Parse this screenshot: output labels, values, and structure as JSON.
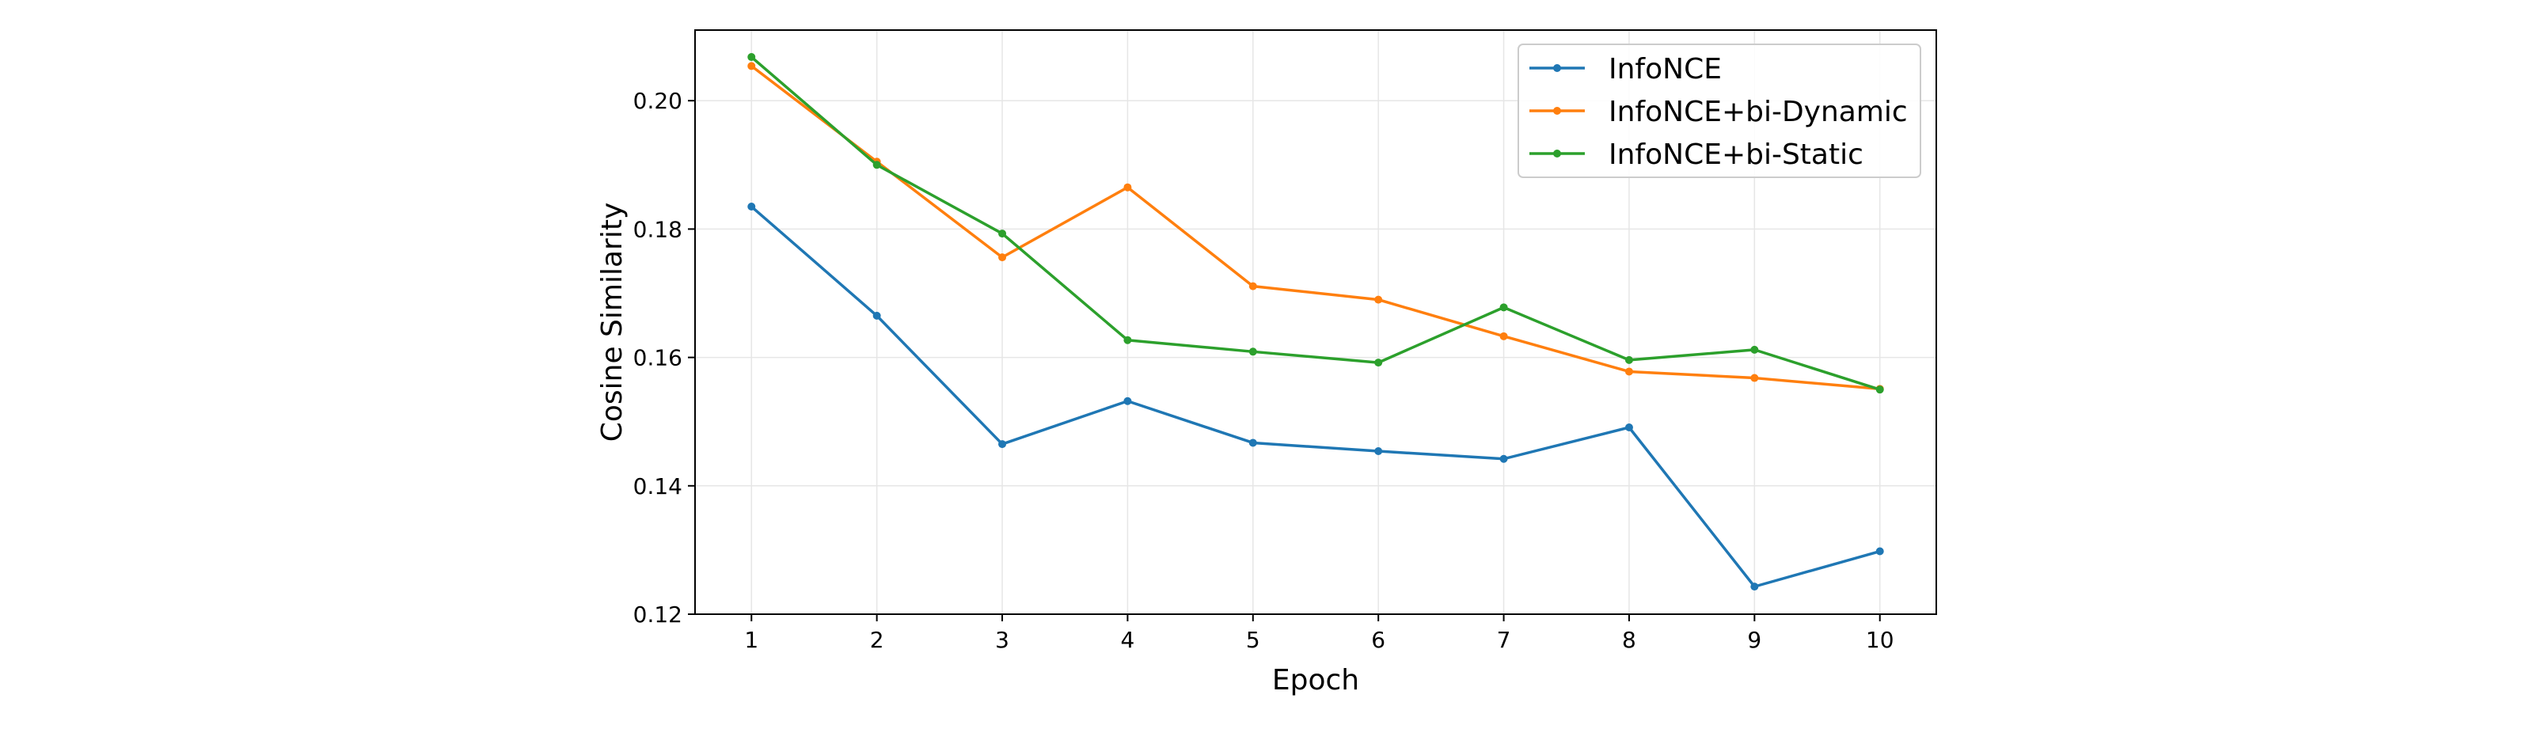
{
  "chart_data": {
    "type": "line",
    "xlabel": "Epoch",
    "ylabel": "Cosine Similarity",
    "x": [
      1,
      2,
      3,
      4,
      5,
      6,
      7,
      8,
      9,
      10
    ],
    "xticks": [
      "1",
      "2",
      "3",
      "4",
      "5",
      "6",
      "7",
      "8",
      "9",
      "10"
    ],
    "xlim": [
      0.55,
      10.45
    ],
    "yticks": [
      "0.12",
      "0.14",
      "0.16",
      "0.18",
      "0.20"
    ],
    "ylim": [
      0.12,
      0.211
    ],
    "grid": true,
    "legend_position": "top-right",
    "series": [
      {
        "name": "InfoNCE",
        "color": "#1f77b4",
        "values": [
          0.1835,
          0.1665,
          0.1465,
          0.1532,
          0.1467,
          0.1454,
          0.1442,
          0.1491,
          0.1243,
          0.1298
        ]
      },
      {
        "name": "InfoNCE+bi-Dynamic",
        "color": "#ff7f0e",
        "values": [
          0.2054,
          0.1905,
          0.1756,
          0.1865,
          0.1711,
          0.169,
          0.1633,
          0.1578,
          0.1568,
          0.1551
        ]
      },
      {
        "name": "InfoNCE+bi-Static",
        "color": "#2ca02c",
        "values": [
          0.2068,
          0.19,
          0.1793,
          0.1627,
          0.1609,
          0.1592,
          0.1678,
          0.1596,
          0.1612,
          0.155
        ]
      }
    ]
  }
}
